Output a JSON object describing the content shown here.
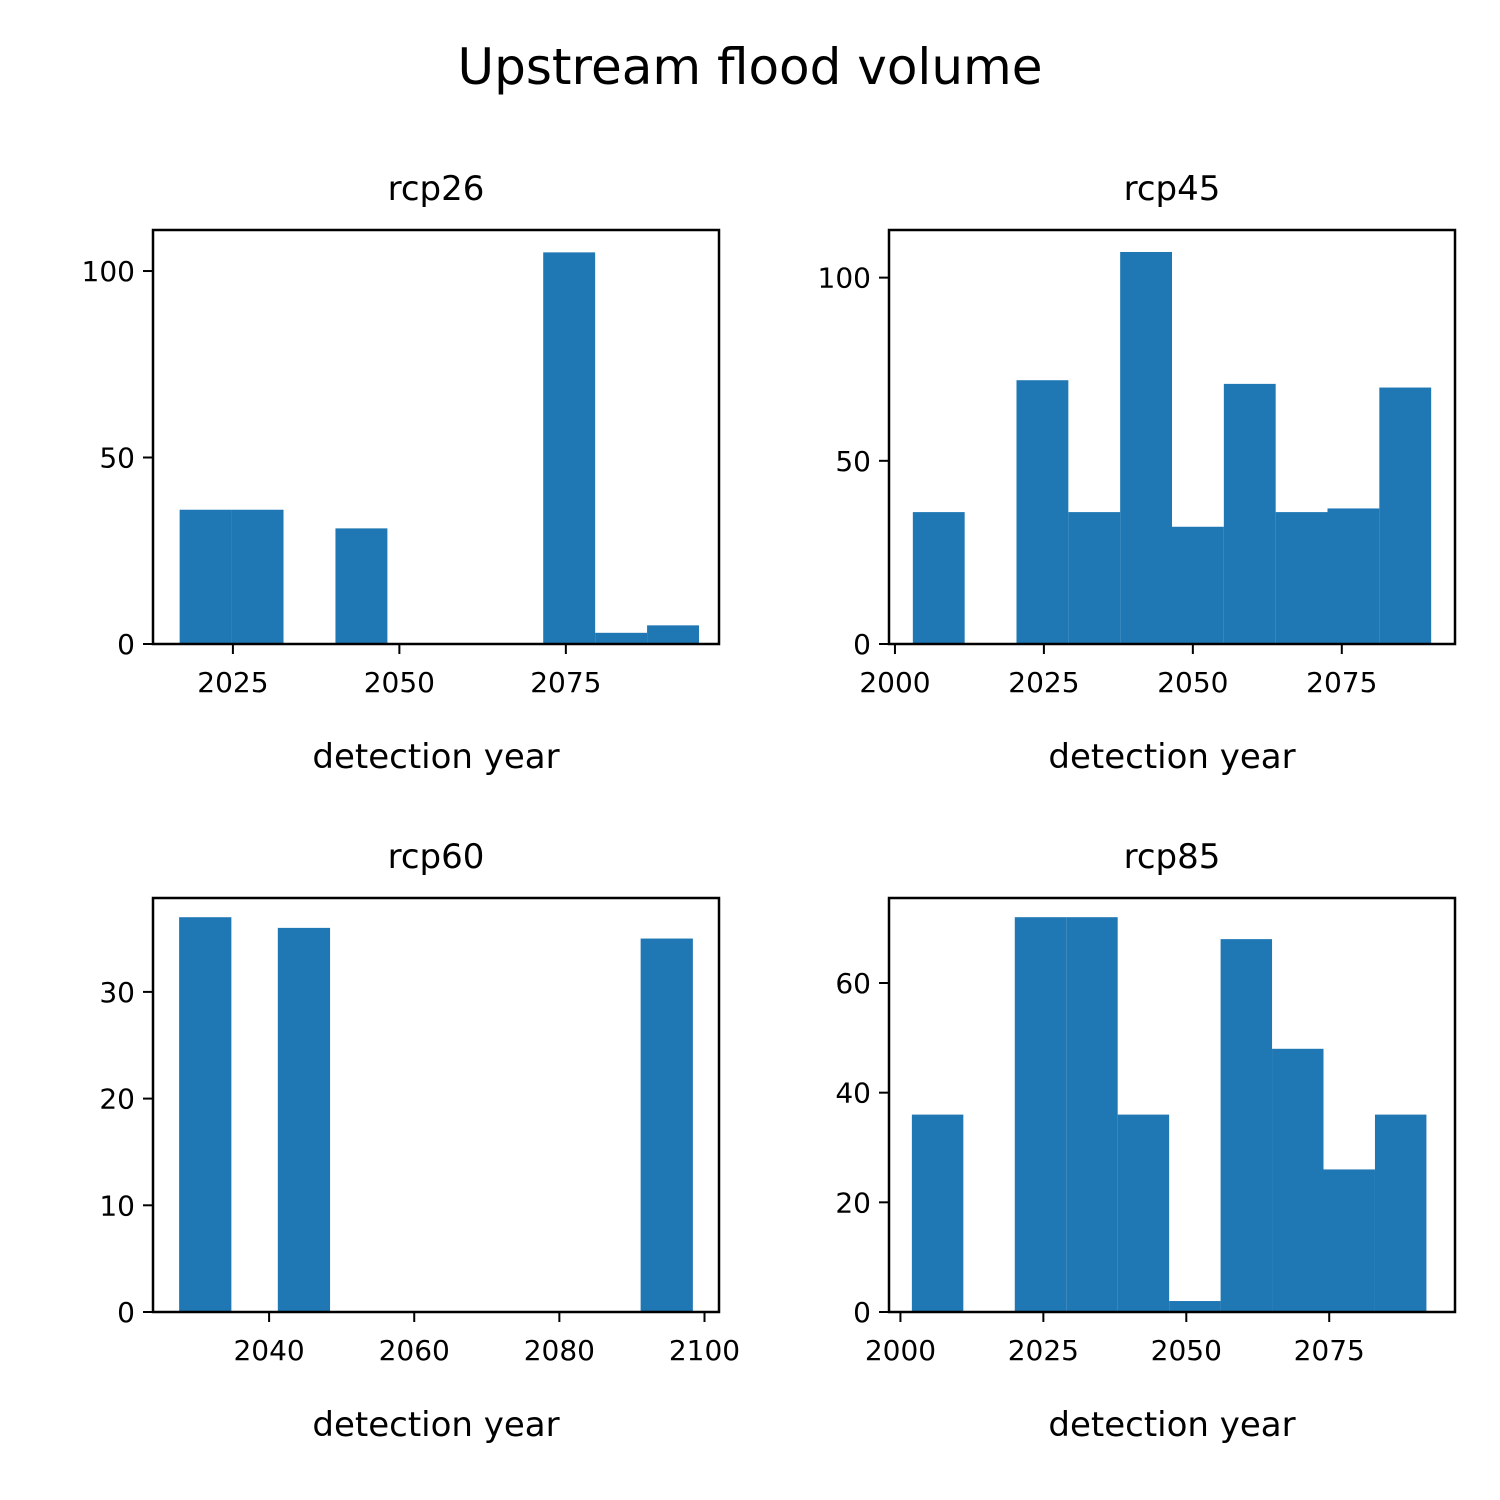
{
  "figure": {
    "title": "Upstream flood volume"
  },
  "colors": {
    "bar": "#1f77b4",
    "axis": "#000000",
    "background": "#ffffff"
  },
  "chart_data": [
    {
      "type": "bar",
      "title": "rcp26",
      "xlabel": "detection year",
      "ylabel": "",
      "xlim": [
        2013,
        2098
      ],
      "ylim": [
        0,
        111
      ],
      "xticks": [
        2025,
        2050,
        2075
      ],
      "yticks": [
        0,
        50,
        100
      ],
      "bins": [
        {
          "x0": 2017,
          "x1": 2024.8,
          "value": 36
        },
        {
          "x0": 2024.8,
          "x1": 2032.6,
          "value": 36
        },
        {
          "x0": 2040.4,
          "x1": 2048.2,
          "value": 31
        },
        {
          "x0": 2071.6,
          "x1": 2079.4,
          "value": 105
        },
        {
          "x0": 2079.4,
          "x1": 2087.2,
          "value": 3
        },
        {
          "x0": 2087.2,
          "x1": 2095,
          "value": 5
        }
      ]
    },
    {
      "type": "bar",
      "title": "rcp45",
      "xlabel": "detection year",
      "ylabel": "",
      "xlim": [
        1999,
        2094
      ],
      "ylim": [
        0,
        113
      ],
      "xticks": [
        2000,
        2025,
        2050,
        2075
      ],
      "yticks": [
        0,
        50,
        100
      ],
      "bins": [
        {
          "x0": 2003,
          "x1": 2011.7,
          "value": 36
        },
        {
          "x0": 2020.4,
          "x1": 2029.1,
          "value": 72
        },
        {
          "x0": 2029.1,
          "x1": 2037.8,
          "value": 36
        },
        {
          "x0": 2037.8,
          "x1": 2046.5,
          "value": 107
        },
        {
          "x0": 2046.5,
          "x1": 2055.2,
          "value": 32
        },
        {
          "x0": 2055.2,
          "x1": 2063.9,
          "value": 71
        },
        {
          "x0": 2063.9,
          "x1": 2072.6,
          "value": 36
        },
        {
          "x0": 2072.6,
          "x1": 2081.3,
          "value": 37
        },
        {
          "x0": 2081.3,
          "x1": 2090,
          "value": 70
        }
      ]
    },
    {
      "type": "bar",
      "title": "rcp60",
      "xlabel": "detection year",
      "ylabel": "",
      "xlim": [
        2024,
        2102
      ],
      "ylim": [
        0,
        38.8
      ],
      "xticks": [
        2040,
        2060,
        2080,
        2100
      ],
      "yticks": [
        0,
        10,
        20,
        30
      ],
      "bins": [
        {
          "x0": 2027.6,
          "x1": 2034.8,
          "value": 37
        },
        {
          "x0": 2041.2,
          "x1": 2048.4,
          "value": 36
        },
        {
          "x0": 2091.2,
          "x1": 2098.4,
          "value": 35
        }
      ]
    },
    {
      "type": "bar",
      "title": "rcp85",
      "xlabel": "detection year",
      "ylabel": "",
      "xlim": [
        1998,
        2097
      ],
      "ylim": [
        0,
        75.5
      ],
      "xticks": [
        2000,
        2025,
        2050,
        2075
      ],
      "yticks": [
        0,
        20,
        40,
        60
      ],
      "bins": [
        {
          "x0": 2002,
          "x1": 2011,
          "value": 36
        },
        {
          "x0": 2020,
          "x1": 2029,
          "value": 72
        },
        {
          "x0": 2029,
          "x1": 2038,
          "value": 72
        },
        {
          "x0": 2038,
          "x1": 2047,
          "value": 36
        },
        {
          "x0": 2047,
          "x1": 2056,
          "value": 2
        },
        {
          "x0": 2056,
          "x1": 2065,
          "value": 68
        },
        {
          "x0": 2065,
          "x1": 2074,
          "value": 48
        },
        {
          "x0": 2074,
          "x1": 2083,
          "value": 26
        },
        {
          "x0": 2083,
          "x1": 2092,
          "value": 36
        }
      ]
    }
  ]
}
